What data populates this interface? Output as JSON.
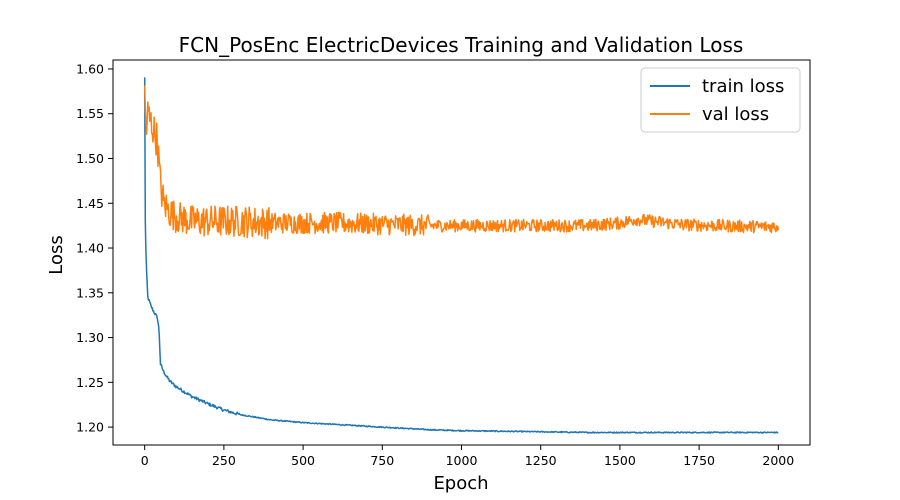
{
  "chart_data": {
    "type": "line",
    "title": "FCN_PosEnc ElectricDevices Training and Validation Loss",
    "xlabel": "Epoch",
    "ylabel": "Loss",
    "xlim": [
      -100,
      2100
    ],
    "ylim": [
      1.18,
      1.61
    ],
    "xticks": [
      0,
      250,
      500,
      750,
      1000,
      1250,
      1500,
      1750,
      2000
    ],
    "yticks": [
      1.2,
      1.25,
      1.3,
      1.35,
      1.4,
      1.45,
      1.5,
      1.55,
      1.6
    ],
    "xtick_labels": [
      "0",
      "250",
      "500",
      "750",
      "1000",
      "1250",
      "1500",
      "1750",
      "2000"
    ],
    "ytick_labels": [
      "1.20",
      "1.25",
      "1.30",
      "1.35",
      "1.40",
      "1.45",
      "1.50",
      "1.55",
      "1.60"
    ],
    "legend_position": "top-right",
    "grid": false,
    "series": [
      {
        "name": "train loss",
        "color": "#1f77b4",
        "x": [
          0,
          2,
          5,
          10,
          20,
          30,
          40,
          45,
          50,
          60,
          70,
          80,
          100,
          150,
          200,
          250,
          300,
          400,
          500,
          600,
          700,
          800,
          900,
          1000,
          1200,
          1400,
          1600,
          1800,
          2000
        ],
        "y": [
          1.59,
          1.43,
          1.38,
          1.345,
          1.335,
          1.328,
          1.322,
          1.31,
          1.27,
          1.262,
          1.256,
          1.251,
          1.245,
          1.234,
          1.226,
          1.219,
          1.214,
          1.208,
          1.205,
          1.203,
          1.201,
          1.199,
          1.197,
          1.196,
          1.195,
          1.194,
          1.194,
          1.194,
          1.194
        ]
      },
      {
        "name": "val loss",
        "color": "#ff7f0e",
        "x": [
          0,
          5,
          10,
          20,
          30,
          40,
          50,
          60,
          80,
          100,
          150,
          200,
          250,
          300,
          400,
          500,
          600,
          700,
          800,
          900,
          1000,
          1100,
          1200,
          1300,
          1400,
          1500,
          1550,
          1600,
          1700,
          1800,
          1900,
          2000
        ],
        "y": [
          1.57,
          1.53,
          1.55,
          1.54,
          1.53,
          1.52,
          1.47,
          1.45,
          1.44,
          1.435,
          1.43,
          1.43,
          1.43,
          1.43,
          1.428,
          1.428,
          1.428,
          1.427,
          1.426,
          1.425,
          1.425,
          1.425,
          1.425,
          1.425,
          1.425,
          1.428,
          1.432,
          1.43,
          1.426,
          1.425,
          1.424,
          1.424
        ]
      }
    ]
  }
}
